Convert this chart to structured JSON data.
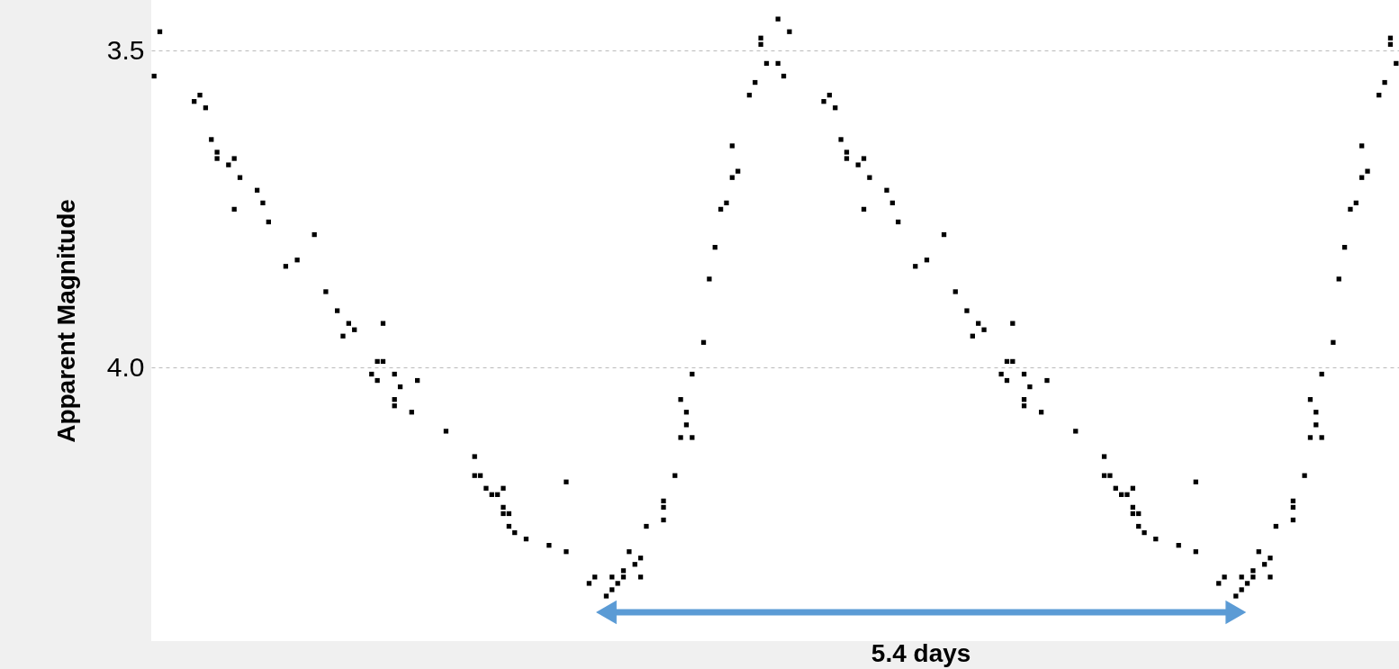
{
  "chart_data": {
    "type": "scatter",
    "ylabel": "Apparent Magnitude",
    "categories": [
      null,
      null,
      null,
      null,
      null,
      null,
      null,
      null,
      null,
      null,
      null,
      null,
      null,
      null,
      null,
      null,
      null,
      null,
      null,
      null,
      null,
      null,
      null,
      null,
      null,
      null,
      null,
      null,
      null,
      null,
      null,
      null,
      null,
      null,
      null,
      null,
      null,
      null,
      null,
      null,
      null,
      null,
      null,
      null,
      null,
      null,
      null,
      null,
      null,
      null,
      null,
      null,
      null,
      null,
      null,
      null,
      null,
      null,
      null,
      null,
      null,
      null,
      null,
      null,
      null,
      null,
      null,
      null,
      null,
      null,
      null,
      null,
      null,
      null,
      null,
      null,
      null,
      null,
      null,
      null,
      null,
      null,
      null,
      null,
      null,
      null,
      null,
      null,
      null,
      null,
      null,
      null,
      null,
      null,
      null,
      null,
      null,
      null,
      null,
      null,
      null,
      null,
      null,
      null,
      null,
      null,
      null,
      null,
      null,
      null,
      null,
      null,
      null,
      null,
      null,
      null,
      null,
      null,
      null,
      null,
      null,
      null,
      null,
      null,
      null,
      null,
      null,
      null,
      null,
      null,
      null,
      null,
      null,
      null,
      null,
      null,
      null,
      null,
      null,
      null,
      null,
      null,
      null,
      null,
      null,
      null,
      null,
      null,
      null,
      null,
      null,
      null,
      null,
      null,
      null,
      null,
      null,
      null,
      null,
      null,
      null,
      null,
      null,
      null,
      null,
      null,
      null,
      null,
      null,
      null,
      null,
      null,
      null,
      null,
      null,
      null,
      null,
      null,
      null,
      null,
      null,
      null,
      null,
      null,
      null,
      null,
      null,
      null,
      null,
      null,
      null,
      null,
      null,
      null,
      null,
      null,
      null,
      null,
      null,
      null,
      null,
      null,
      null,
      null,
      null,
      null,
      null,
      null,
      null,
      null,
      null,
      null,
      null,
      null,
      null,
      null,
      null,
      null
    ],
    "ylim": [
      4.431,
      3.42
    ],
    "yticks": [
      3.5,
      {
        "value": 4.0,
        "label": "4.0"
      }
    ],
    "tick_labels": "y",
    "grid": "y",
    "marker": "square",
    "annotations": [
      "5.4 days"
    ],
    "series": [
      {
        "color": "#000000",
        "values": [
          3.54,
          3.47,
          null,
          null,
          null,
          null,
          null,
          3.58,
          3.57,
          3.59,
          3.64,
          3.66,
          null,
          3.68,
          3.67,
          3.7,
          null,
          null,
          3.72,
          3.74,
          3.77,
          null,
          null,
          3.84,
          null,
          3.83,
          null,
          null,
          3.79,
          null,
          3.88,
          null,
          3.91,
          3.95,
          3.93,
          3.94,
          null,
          null,
          4.01,
          3.99,
          3.93,
          null,
          4.01,
          4.03,
          null,
          4.07,
          4.02,
          null,
          null,
          null,
          null,
          4.1,
          null,
          null,
          null,
          null,
          4.14,
          4.17,
          4.19,
          4.2,
          4.2,
          4.19,
          4.23,
          4.26,
          null,
          4.27,
          null,
          null,
          null,
          4.28,
          null,
          null,
          4.29,
          null,
          null,
          null,
          4.34,
          4.33,
          null,
          4.36,
          4.35,
          4.34,
          4.33,
          4.29,
          4.31,
          4.33,
          4.25,
          null,
          null,
          4.24,
          null,
          4.17,
          4.11,
          4.09,
          4.11,
          null,
          3.96,
          3.86,
          3.81,
          3.75,
          3.74,
          3.7,
          3.69,
          null,
          3.57,
          3.55,
          3.49,
          3.52,
          null,
          3.52,
          3.54,
          3.47,
          null,
          null,
          null,
          null,
          null,
          3.58,
          3.57,
          3.59,
          3.64,
          3.66,
          null,
          3.68,
          3.67,
          3.7,
          null,
          null,
          3.72,
          3.74,
          3.77,
          null,
          null,
          3.84,
          null,
          3.83,
          null,
          null,
          3.79,
          null,
          3.88,
          null,
          3.91,
          3.95,
          3.93,
          3.94,
          null,
          null,
          4.01,
          3.99,
          3.93,
          null,
          4.01,
          4.03,
          null,
          4.07,
          4.02,
          null,
          null,
          null,
          null,
          4.1,
          null,
          null,
          null,
          null,
          4.14,
          4.17,
          4.19,
          4.2,
          4.2,
          4.19,
          4.23,
          4.26,
          null,
          4.27,
          null,
          null,
          null,
          4.28,
          null,
          null,
          4.29,
          null,
          null,
          null,
          4.34,
          4.33,
          null,
          4.36,
          4.35,
          4.34,
          4.33,
          4.29,
          4.31,
          4.33,
          4.25,
          null,
          null,
          4.24,
          null,
          4.17,
          4.11,
          4.09,
          4.11,
          null,
          3.96,
          3.86,
          3.81,
          3.75,
          3.74,
          3.7,
          3.69,
          null,
          3.57,
          3.55,
          3.49,
          3.52
        ]
      },
      {
        "color": "#000000",
        "values": [
          null,
          null,
          null,
          null,
          null,
          null,
          null,
          null,
          null,
          null,
          null,
          3.67,
          null,
          null,
          3.75,
          null,
          null,
          null,
          null,
          null,
          null,
          null,
          null,
          null,
          null,
          null,
          null,
          null,
          null,
          null,
          null,
          null,
          null,
          null,
          null,
          null,
          null,
          null,
          null,
          4.02,
          3.99,
          null,
          4.05,
          null,
          null,
          null,
          null,
          null,
          null,
          null,
          null,
          null,
          null,
          null,
          null,
          null,
          4.17,
          null,
          null,
          null,
          null,
          4.22,
          4.25,
          null,
          null,
          null,
          null,
          null,
          null,
          null,
          null,
          null,
          4.18,
          null,
          null,
          null,
          null,
          null,
          null,
          null,
          4.33,
          null,
          4.32,
          null,
          null,
          4.3,
          null,
          null,
          null,
          4.22,
          null,
          null,
          4.05,
          4.07,
          4.01,
          null,
          null,
          null,
          null,
          null,
          null,
          3.65,
          null,
          null,
          null,
          null,
          3.48,
          null,
          null,
          3.45,
          null,
          null,
          null,
          null,
          null,
          null,
          null,
          null,
          null,
          null,
          null,
          3.67,
          null,
          null,
          3.75,
          null,
          null,
          null,
          null,
          null,
          null,
          null,
          null,
          null,
          null,
          null,
          null,
          null,
          null,
          null,
          null,
          null,
          null,
          null,
          null,
          null,
          null,
          null,
          null,
          4.02,
          3.99,
          null,
          4.05,
          null,
          null,
          null,
          null,
          null,
          null,
          null,
          null,
          null,
          null,
          null,
          null,
          null,
          4.17,
          null,
          null,
          null,
          null,
          4.22,
          4.25,
          null,
          null,
          null,
          null,
          null,
          null,
          null,
          null,
          null,
          4.18,
          null,
          null,
          null,
          null,
          null,
          null,
          null,
          4.33,
          null,
          4.32,
          null,
          null,
          4.3,
          null,
          null,
          null,
          4.22,
          null,
          null,
          4.05,
          4.07,
          4.01,
          null,
          null,
          null,
          null,
          null,
          null,
          3.65,
          null,
          null,
          null,
          null,
          3.48,
          null
        ]
      },
      {
        "color": "#000000",
        "values": [
          null,
          null,
          null,
          null,
          null,
          null,
          null,
          null,
          null,
          null,
          null,
          null,
          null,
          null,
          null,
          null,
          null,
          null,
          null,
          null,
          null,
          null,
          null,
          null,
          null,
          null,
          null,
          null,
          null,
          null,
          null,
          null,
          null,
          null,
          null,
          null,
          null,
          null,
          null,
          null,
          null,
          null,
          4.06,
          null,
          null,
          null,
          null,
          null,
          null,
          null,
          null,
          null,
          null,
          null,
          null,
          null,
          null,
          null,
          null,
          null,
          null,
          4.23,
          null,
          null,
          null,
          null,
          null,
          null,
          null,
          null,
          null,
          null,
          null,
          null,
          null,
          null,
          null,
          null,
          null,
          null,
          null,
          null,
          null,
          null,
          null,
          null,
          null,
          null,
          null,
          4.21,
          null,
          null,
          null,
          null,
          null,
          null,
          null,
          null,
          null,
          null,
          null,
          null,
          null,
          null,
          null,
          null,
          null,
          null,
          null,
          null,
          null,
          null,
          null,
          null,
          null,
          null,
          null,
          null,
          null,
          null,
          null,
          null,
          null,
          null,
          null,
          null,
          null,
          null,
          null,
          null,
          null,
          null,
          null,
          null,
          null,
          null,
          null,
          null,
          null,
          null,
          null,
          null,
          null,
          null,
          null,
          null,
          null,
          null,
          null,
          null,
          null,
          null,
          4.06,
          null,
          null,
          null,
          null,
          null,
          null,
          null,
          null,
          null,
          null,
          null,
          null,
          null,
          null,
          null,
          null,
          null,
          null,
          4.23,
          null,
          null,
          null,
          null,
          null,
          null,
          null,
          null,
          null,
          null,
          null,
          null,
          null,
          null,
          null,
          null,
          null,
          null,
          null,
          null,
          null,
          null,
          null,
          null,
          null,
          null,
          null,
          4.21,
          null,
          null,
          null,
          null,
          null,
          null,
          null,
          null,
          null,
          null,
          null,
          null,
          null,
          null,
          null,
          null,
          null,
          null
        ]
      }
    ]
  }
}
